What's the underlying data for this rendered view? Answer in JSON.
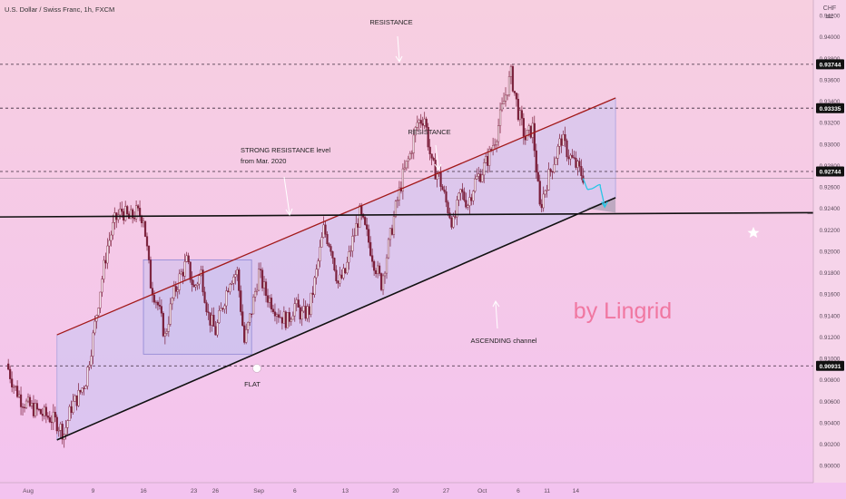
{
  "header": {
    "symbol": "U.S. Dollar / Swiss Franc, 1h, FXCM"
  },
  "colors": {
    "bg_top": "#f7cfe0",
    "bg_bottom": "#f3c3ef",
    "candle_up": "#7a1f3a",
    "candle_down": "#7a1f3a",
    "channel_upper": "#a31a1a",
    "channel_lower": "#111111",
    "support": "#111111",
    "channel_fill": "#c9c4f2",
    "flat_box": "#c7c0ee",
    "projection": "#29c6e6",
    "watermark": "#f06a95",
    "price_tag_bg": "#111111",
    "price_tag_text": "#ffffff"
  },
  "annotations": {
    "resistance_top": "RESISTANCE",
    "resistance_mid": "RESISTANCE",
    "strong_resistance_line1": "STRONG RESISTANCE level",
    "strong_resistance_line2": "from Mar. 2020",
    "flat": "FLAT",
    "ascending": "ASCENDING channel",
    "watermark": "by Lingrid"
  },
  "chart_data": {
    "type": "candlestick",
    "axis_unit": "CHF",
    "ylim": [
      0.899,
      0.943
    ],
    "y_ticks": [
      0.9,
      0.902,
      0.904,
      0.906,
      0.908,
      0.91,
      0.912,
      0.914,
      0.916,
      0.918,
      0.92,
      0.922,
      0.924,
      0.926,
      0.928,
      0.93,
      0.932,
      0.934,
      0.936,
      0.938,
      0.94,
      0.942
    ],
    "y_tick_labels": [
      "0.90000",
      "0.90200",
      "0.90400",
      "0.90600",
      "0.90800",
      "0.91000",
      "0.91200",
      "0.91400",
      "0.91600",
      "0.91800",
      "0.92000",
      "0.92200",
      "0.92400",
      "0.92600",
      "0.92800",
      "0.93000",
      "0.93200",
      "0.93400",
      "0.93600",
      "0.93800",
      "0.94000",
      "0.94200"
    ],
    "x_ticks": [
      {
        "day": 0,
        "label": "Aug"
      },
      {
        "day": 9,
        "label": "9"
      },
      {
        "day": 16,
        "label": "16"
      },
      {
        "day": 23,
        "label": "23"
      },
      {
        "day": 26,
        "label": "26"
      },
      {
        "day": 32,
        "label": "Sep"
      },
      {
        "day": 37,
        "label": "6"
      },
      {
        "day": 44,
        "label": "13"
      },
      {
        "day": 51,
        "label": "20"
      },
      {
        "day": 58,
        "label": "27"
      },
      {
        "day": 63,
        "label": "Oct"
      },
      {
        "day": 68,
        "label": "6"
      },
      {
        "day": 72,
        "label": "11"
      },
      {
        "day": 76,
        "label": "14"
      }
    ],
    "price_levels": [
      {
        "label": "0.93744",
        "value": 0.93744
      },
      {
        "label": "0.93335",
        "value": 0.93335
      },
      {
        "label": "0.92744",
        "value": 0.92744
      },
      {
        "label": "0.90931",
        "value": 0.90931
      }
    ],
    "price_path": [
      [
        -3,
        0.9095
      ],
      [
        -2,
        0.9075
      ],
      [
        -1,
        0.9062
      ],
      [
        0,
        0.9056
      ],
      [
        1,
        0.9052
      ],
      [
        2,
        0.9048
      ],
      [
        3,
        0.9045
      ],
      [
        4,
        0.904
      ],
      [
        5,
        0.903
      ],
      [
        6,
        0.9055
      ],
      [
        7,
        0.9065
      ],
      [
        8,
        0.908
      ],
      [
        9,
        0.912
      ],
      [
        10,
        0.9165
      ],
      [
        11,
        0.9205
      ],
      [
        12,
        0.9228
      ],
      [
        13,
        0.9238
      ],
      [
        14,
        0.923
      ],
      [
        15,
        0.9236
      ],
      [
        16,
        0.9232
      ],
      [
        17,
        0.917
      ],
      [
        18,
        0.915
      ],
      [
        19,
        0.912
      ],
      [
        20,
        0.9155
      ],
      [
        21,
        0.9175
      ],
      [
        22,
        0.919
      ],
      [
        23,
        0.9165
      ],
      [
        24,
        0.918
      ],
      [
        25,
        0.914
      ],
      [
        26,
        0.9125
      ],
      [
        27,
        0.915
      ],
      [
        28,
        0.9175
      ],
      [
        29,
        0.918
      ],
      [
        30,
        0.9115
      ],
      [
        31,
        0.9145
      ],
      [
        32,
        0.918
      ],
      [
        33,
        0.916
      ],
      [
        34,
        0.915
      ],
      [
        35,
        0.914
      ],
      [
        36,
        0.9135
      ],
      [
        37,
        0.915
      ],
      [
        38,
        0.914
      ],
      [
        39,
        0.9145
      ],
      [
        40,
        0.918
      ],
      [
        41,
        0.922
      ],
      [
        42,
        0.9205
      ],
      [
        43,
        0.917
      ],
      [
        44,
        0.918
      ],
      [
        45,
        0.921
      ],
      [
        46,
        0.9235
      ],
      [
        47,
        0.9215
      ],
      [
        48,
        0.919
      ],
      [
        49,
        0.917
      ],
      [
        50,
        0.9205
      ],
      [
        51,
        0.924
      ],
      [
        52,
        0.927
      ],
      [
        53,
        0.929
      ],
      [
        54,
        0.932
      ],
      [
        55,
        0.9325
      ],
      [
        56,
        0.928
      ],
      [
        57,
        0.927
      ],
      [
        58,
        0.9245
      ],
      [
        59,
        0.9225
      ],
      [
        60,
        0.9255
      ],
      [
        61,
        0.9245
      ],
      [
        62,
        0.9265
      ],
      [
        63,
        0.9275
      ],
      [
        64,
        0.929
      ],
      [
        65,
        0.931
      ],
      [
        66,
        0.934
      ],
      [
        67,
        0.9365
      ],
      [
        68,
        0.933
      ],
      [
        69,
        0.9305
      ],
      [
        70,
        0.9315
      ],
      [
        71,
        0.924
      ],
      [
        72,
        0.9265
      ],
      [
        73,
        0.9285
      ],
      [
        74,
        0.9305
      ],
      [
        75,
        0.929
      ],
      [
        76,
        0.928
      ],
      [
        77,
        0.927
      ]
    ],
    "projection": [
      [
        77,
        0.9268
      ],
      [
        78,
        0.9258
      ],
      [
        79,
        0.9262
      ],
      [
        80,
        0.9242
      ]
    ],
    "channel_upper": [
      [
        4,
        0.9122
      ],
      [
        81.5,
        0.9343
      ]
    ],
    "channel_lower": [
      [
        4,
        0.9024
      ],
      [
        81.5,
        0.925
      ]
    ],
    "support": [
      [
        -3,
        0.9232
      ],
      [
        84,
        0.9236
      ]
    ],
    "resistance_levels": [
      0.93744,
      0.93335,
      0.92744,
      0.90931
    ],
    "flat_range": {
      "x": [
        16,
        31
      ],
      "y": [
        0.9104,
        0.9192
      ]
    },
    "grid": false,
    "legend": "none"
  }
}
